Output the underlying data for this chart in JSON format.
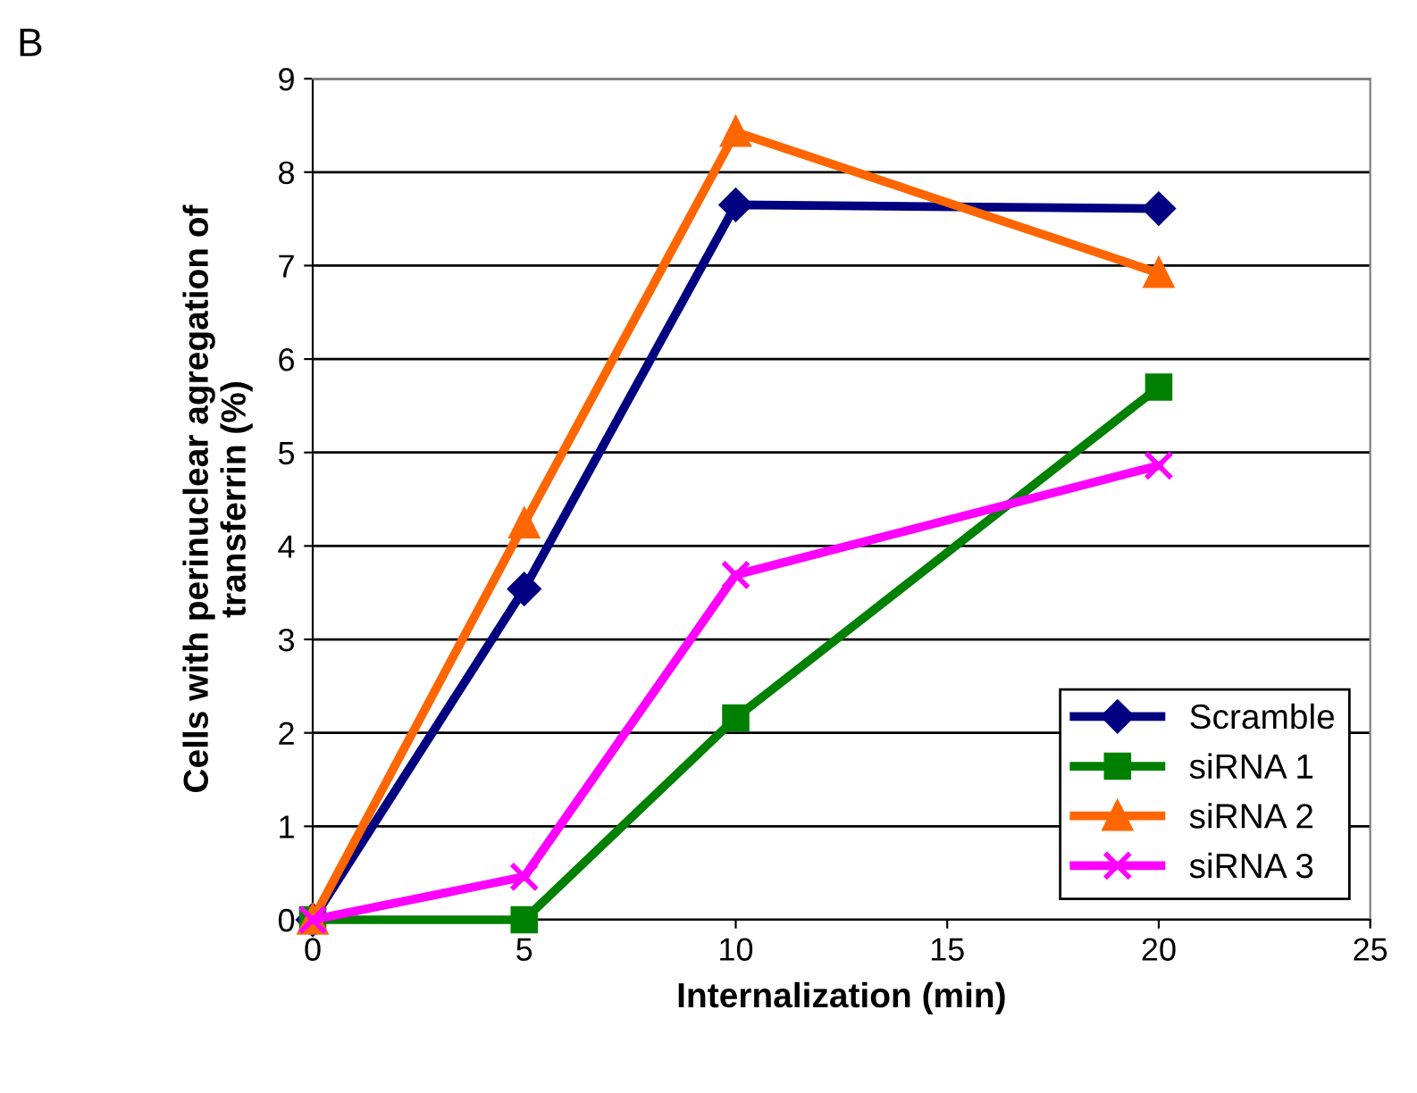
{
  "chart_data": {
    "type": "line",
    "xlabel": "Internalization (min)",
    "ylabel": "Cells with perinuclear agregation of\ntransferrin (%)",
    "annotations": [
      "B"
    ],
    "x": [
      0,
      5,
      10,
      20
    ],
    "xlim": [
      0,
      25
    ],
    "xticks": [
      0,
      5,
      10,
      15,
      20,
      25
    ],
    "ylim": [
      0,
      9
    ],
    "yticks": [
      0,
      1,
      2,
      3,
      4,
      5,
      6,
      7,
      8,
      9
    ],
    "grid": "y",
    "legend": "bottom right",
    "line_style": "solid",
    "series": [
      {
        "name": "Scramble",
        "color": "#000080",
        "marker": "diamond",
        "values": [
          0,
          3.54,
          7.65,
          7.61
        ]
      },
      {
        "name": "siRNA 1",
        "color": "#008000",
        "marker": "square",
        "values": [
          0,
          0,
          2.16,
          5.7
        ]
      },
      {
        "name": "siRNA 2",
        "color": "#ff6600",
        "marker": "triangle",
        "values": [
          0,
          4.24,
          8.43,
          6.92
        ]
      },
      {
        "name": "siRNA 3",
        "color": "#ff00ff",
        "marker": "cross",
        "values": [
          0,
          0.46,
          3.69,
          4.86
        ]
      }
    ]
  }
}
